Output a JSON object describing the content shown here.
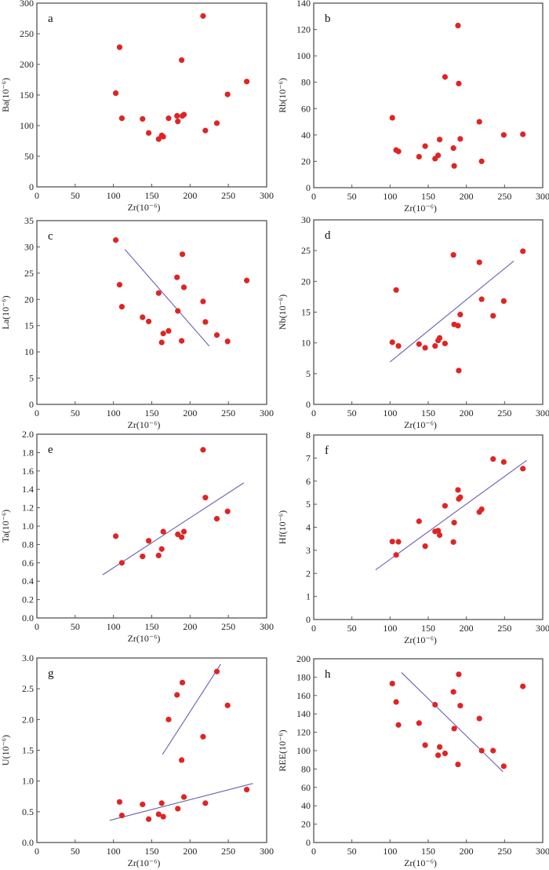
{
  "chart_data": [
    {
      "type": "scatter",
      "panel": "a",
      "xlabel": "Zr(10⁻⁶)",
      "ylabel": "Ba(10⁻⁶)",
      "xlim": [
        0,
        300
      ],
      "ylim": [
        0,
        300
      ],
      "xticks": [
        0,
        50,
        100,
        150,
        200,
        250,
        300
      ],
      "yticks": [
        0,
        50,
        100,
        150,
        200,
        250,
        300
      ],
      "points": [
        [
          103,
          153
        ],
        [
          108,
          228
        ],
        [
          111,
          112
        ],
        [
          138,
          111
        ],
        [
          146,
          88
        ],
        [
          159,
          78
        ],
        [
          163,
          84
        ],
        [
          165,
          82
        ],
        [
          172,
          112
        ],
        [
          183,
          116
        ],
        [
          184,
          107
        ],
        [
          189,
          207
        ],
        [
          190,
          116
        ],
        [
          192,
          118
        ],
        [
          217,
          279
        ],
        [
          220,
          92
        ],
        [
          235,
          104
        ],
        [
          249,
          151
        ],
        [
          274,
          172
        ]
      ],
      "fit_lines": []
    },
    {
      "type": "scatter",
      "panel": "b",
      "xlabel": "Zr(10⁻⁶)",
      "ylabel": "Rb(10⁻⁶)",
      "xlim": [
        0,
        300
      ],
      "ylim": [
        0,
        140
      ],
      "xticks": [
        0,
        50,
        100,
        150,
        200,
        250,
        300
      ],
      "yticks": [
        0,
        20,
        40,
        60,
        80,
        100,
        120,
        140
      ],
      "points": [
        [
          103,
          53
        ],
        [
          108,
          28.5
        ],
        [
          111,
          27.5
        ],
        [
          138,
          23.5
        ],
        [
          146,
          31.5
        ],
        [
          159,
          22
        ],
        [
          163,
          24.5
        ],
        [
          165,
          36.5
        ],
        [
          172,
          84
        ],
        [
          183,
          30
        ],
        [
          184,
          16.5
        ],
        [
          189,
          123
        ],
        [
          190,
          79
        ],
        [
          192,
          37
        ],
        [
          217,
          50
        ],
        [
          220,
          20
        ],
        [
          249,
          40
        ],
        [
          274,
          40.5
        ]
      ],
      "fit_lines": []
    },
    {
      "type": "scatter",
      "panel": "c",
      "xlabel": "Zr(10⁻⁶)",
      "ylabel": "La(10⁻⁶)",
      "xlim": [
        0,
        300
      ],
      "ylim": [
        0,
        35
      ],
      "xticks": [
        0,
        50,
        100,
        150,
        200,
        250,
        300
      ],
      "yticks": [
        0,
        5,
        10,
        15,
        20,
        25,
        30,
        35
      ],
      "points": [
        [
          103,
          31.3
        ],
        [
          108,
          22.8
        ],
        [
          111,
          18.6
        ],
        [
          138,
          16.6
        ],
        [
          146,
          15.8
        ],
        [
          159,
          21.2
        ],
        [
          163,
          11.8
        ],
        [
          165,
          13.5
        ],
        [
          172,
          14
        ],
        [
          183,
          24.2
        ],
        [
          184,
          17.8
        ],
        [
          189,
          12.1
        ],
        [
          190,
          28.6
        ],
        [
          192,
          22.3
        ],
        [
          217,
          19.6
        ],
        [
          220,
          15.7
        ],
        [
          235,
          13.2
        ],
        [
          249,
          12
        ],
        [
          274,
          23.6
        ]
      ],
      "fit_lines": [
        [
          [
            115,
            29.5
          ],
          [
            225,
            11.1
          ]
        ]
      ]
    },
    {
      "type": "scatter",
      "panel": "d",
      "xlabel": "Zr(10⁻⁶)",
      "ylabel": "Nb(10⁻⁶)",
      "xlim": [
        0,
        300
      ],
      "ylim": [
        0,
        30
      ],
      "xticks": [
        0,
        50,
        100,
        150,
        200,
        250,
        300
      ],
      "yticks": [
        0,
        5,
        10,
        15,
        20,
        25,
        30
      ],
      "points": [
        [
          103,
          10.1
        ],
        [
          108,
          18.6
        ],
        [
          111,
          9.5
        ],
        [
          138,
          9.8
        ],
        [
          146,
          9.2
        ],
        [
          159,
          9.5
        ],
        [
          163,
          10.4
        ],
        [
          165,
          10.8
        ],
        [
          172,
          9.9
        ],
        [
          183,
          24.3
        ],
        [
          184,
          13
        ],
        [
          189,
          12.8
        ],
        [
          190,
          5.5
        ],
        [
          192,
          14.6
        ],
        [
          217,
          23.1
        ],
        [
          220,
          17.1
        ],
        [
          235,
          14.4
        ],
        [
          249,
          16.8
        ],
        [
          274,
          24.9
        ]
      ],
      "fit_lines": [
        [
          [
            100,
            6.9
          ],
          [
            262,
            23.3
          ]
        ]
      ]
    },
    {
      "type": "scatter",
      "panel": "e",
      "xlabel": "Zr(10⁻⁶)",
      "ylabel": "Ta(10⁻⁶)",
      "xlim": [
        0,
        300
      ],
      "ylim": [
        0,
        2.0
      ],
      "xticks": [
        0,
        50,
        100,
        150,
        200,
        250,
        300
      ],
      "yticks": [
        "0.0",
        "0.2",
        "0.4",
        "0.6",
        "0.8",
        "1.0",
        "1.2",
        "1.4",
        "1.6",
        "1.8",
        "2.0"
      ],
      "points": [
        [
          103,
          0.89
        ],
        [
          111,
          0.6
        ],
        [
          138,
          0.67
        ],
        [
          146,
          0.84
        ],
        [
          159,
          0.68
        ],
        [
          163,
          0.75
        ],
        [
          165,
          0.94
        ],
        [
          184,
          0.91
        ],
        [
          189,
          0.88
        ],
        [
          192,
          0.94
        ],
        [
          217,
          1.83
        ],
        [
          220,
          1.31
        ],
        [
          235,
          1.08
        ],
        [
          249,
          1.16
        ]
      ],
      "fit_lines": [
        [
          [
            86,
            0.47
          ],
          [
            270,
            1.47
          ]
        ]
      ]
    },
    {
      "type": "scatter",
      "panel": "f",
      "xlabel": "Zr(10⁻⁶)",
      "ylabel": "Hf(10⁻⁶)",
      "xlim": [
        0,
        300
      ],
      "ylim": [
        0,
        8
      ],
      "xticks": [
        0,
        50,
        100,
        150,
        200,
        250,
        300
      ],
      "yticks": [
        0,
        1,
        2,
        3,
        4,
        5,
        6,
        7,
        8
      ],
      "points": [
        [
          103,
          3.38
        ],
        [
          108,
          2.8
        ],
        [
          111,
          3.37
        ],
        [
          138,
          4.26
        ],
        [
          146,
          3.18
        ],
        [
          159,
          3.82
        ],
        [
          163,
          3.85
        ],
        [
          165,
          3.66
        ],
        [
          172,
          4.93
        ],
        [
          183,
          3.36
        ],
        [
          184,
          4.2
        ],
        [
          189,
          5.62
        ],
        [
          190,
          5.23
        ],
        [
          192,
          5.3
        ],
        [
          217,
          4.66
        ],
        [
          220,
          4.78
        ],
        [
          235,
          6.96
        ],
        [
          249,
          6.83
        ],
        [
          274,
          6.54
        ]
      ],
      "fit_lines": [
        [
          [
            81,
            2.15
          ],
          [
            279,
            6.9
          ]
        ]
      ]
    },
    {
      "type": "scatter",
      "panel": "g",
      "xlabel": "Zr(10⁻⁶)",
      "ylabel": "U(10⁻⁶)",
      "xlim": [
        0,
        300
      ],
      "ylim": [
        0,
        3.0
      ],
      "xticks": [
        0,
        50,
        100,
        150,
        200,
        250,
        300
      ],
      "yticks": [
        "0.0",
        "0.5",
        "1.0",
        "1.5",
        "2.0",
        "2.5",
        "3.0"
      ],
      "points": [
        [
          108,
          0.66
        ],
        [
          111,
          0.44
        ],
        [
          138,
          0.62
        ],
        [
          146,
          0.38
        ],
        [
          159,
          0.46
        ],
        [
          163,
          0.64
        ],
        [
          165,
          0.42
        ],
        [
          172,
          2.0
        ],
        [
          183,
          2.4
        ],
        [
          184,
          0.55
        ],
        [
          189,
          1.34
        ],
        [
          190,
          2.6
        ],
        [
          192,
          0.74
        ],
        [
          217,
          1.72
        ],
        [
          220,
          0.64
        ],
        [
          235,
          2.78
        ],
        [
          249,
          2.23
        ],
        [
          274,
          0.86
        ]
      ],
      "fit_lines": [
        [
          [
            95,
            0.36
          ],
          [
            282,
            0.96
          ]
        ],
        [
          [
            164,
            1.43
          ],
          [
            240,
            2.9
          ]
        ]
      ]
    },
    {
      "type": "scatter",
      "panel": "h",
      "xlabel": "Zr(10⁻⁶)",
      "ylabel": "REE(10⁻⁶)",
      "xlim": [
        0,
        300
      ],
      "ylim": [
        0,
        200
      ],
      "xticks": [
        0,
        50,
        100,
        150,
        200,
        250,
        300
      ],
      "yticks": [
        0,
        20,
        40,
        60,
        80,
        100,
        120,
        140,
        160,
        180,
        200
      ],
      "points": [
        [
          103,
          173
        ],
        [
          108,
          153
        ],
        [
          111,
          128
        ],
        [
          138,
          130
        ],
        [
          146,
          106
        ],
        [
          159,
          150
        ],
        [
          163,
          95
        ],
        [
          165,
          104
        ],
        [
          172,
          97
        ],
        [
          183,
          164
        ],
        [
          184,
          124
        ],
        [
          189,
          85
        ],
        [
          190,
          183
        ],
        [
          192,
          149
        ],
        [
          217,
          135
        ],
        [
          220,
          100
        ],
        [
          235,
          100
        ],
        [
          249,
          83
        ],
        [
          274,
          170
        ]
      ],
      "fit_lines": [
        [
          [
            115,
            185
          ],
          [
            248,
            77
          ]
        ]
      ]
    }
  ]
}
